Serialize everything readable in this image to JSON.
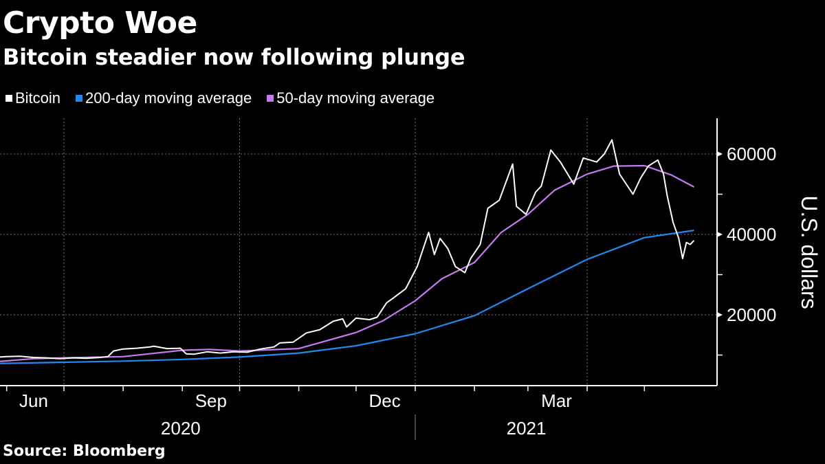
{
  "header": {
    "title": "Crypto Woe",
    "subtitle": "Bitcoin steadier now following plunge"
  },
  "legend": [
    {
      "label": "Bitcoin",
      "color": "#ffffff"
    },
    {
      "label": "200-day moving average",
      "color": "#1f8bf2"
    },
    {
      "label": "50-day moving average",
      "color": "#c77af0"
    }
  ],
  "footer": {
    "source": "Source: Bloomberg"
  },
  "chart_data": {
    "type": "line",
    "title": "Crypto Woe",
    "subtitle": "Bitcoin steadier now following plunge",
    "xlabel": "",
    "ylabel": "U.S. dollars",
    "ylim": [
      2600,
      68900
    ],
    "xlim": [
      "2020-05-28",
      "2021-05-20"
    ],
    "grid": true,
    "legend_position": "top-left",
    "y_ticks": [
      20000,
      40000,
      60000
    ],
    "y_tick_labels": [
      "20000",
      "40000",
      "60000"
    ],
    "y_minor_ticks": [
      10000,
      30000,
      50000
    ],
    "x_ticks": [
      "2020-06-01",
      "2020-07-01",
      "2020-08-01",
      "2020-09-01",
      "2020-10-01",
      "2020-11-01",
      "2020-12-01",
      "2021-01-01",
      "2021-02-01",
      "2021-03-01",
      "2021-04-01",
      "2021-05-01"
    ],
    "x_month_labels": [
      {
        "label": "Jun",
        "date": "2020-06-16"
      },
      {
        "label": "Sep",
        "date": "2020-09-16"
      },
      {
        "label": "Dec",
        "date": "2020-12-16"
      },
      {
        "label": "Mar",
        "date": "2021-03-16"
      }
    ],
    "x_year_labels": [
      {
        "label": "2020",
        "date": "2020-09-16"
      },
      {
        "label": "2021",
        "date": "2021-03-16"
      }
    ],
    "year_divider": "2021-01-01",
    "series": [
      {
        "name": "Bitcoin",
        "color": "#ffffff",
        "x": [
          "2020-05-28",
          "2020-06-01",
          "2020-06-08",
          "2020-06-15",
          "2020-06-22",
          "2020-06-29",
          "2020-07-06",
          "2020-07-13",
          "2020-07-20",
          "2020-07-24",
          "2020-07-27",
          "2020-08-01",
          "2020-08-08",
          "2020-08-15",
          "2020-08-17",
          "2020-08-24",
          "2020-08-31",
          "2020-09-03",
          "2020-09-07",
          "2020-09-14",
          "2020-09-21",
          "2020-09-28",
          "2020-10-05",
          "2020-10-12",
          "2020-10-19",
          "2020-10-22",
          "2020-10-29",
          "2020-11-05",
          "2020-11-12",
          "2020-11-19",
          "2020-11-24",
          "2020-11-26",
          "2020-12-01",
          "2020-12-08",
          "2020-12-12",
          "2020-12-17",
          "2020-12-20",
          "2020-12-27",
          "2021-01-02",
          "2021-01-08",
          "2021-01-11",
          "2021-01-14",
          "2021-01-18",
          "2021-01-22",
          "2021-01-27",
          "2021-01-30",
          "2021-02-04",
          "2021-02-08",
          "2021-02-14",
          "2021-02-21",
          "2021-02-23",
          "2021-02-28",
          "2021-03-05",
          "2021-03-08",
          "2021-03-13",
          "2021-03-18",
          "2021-03-25",
          "2021-03-30",
          "2021-04-06",
          "2021-04-10",
          "2021-04-14",
          "2021-04-18",
          "2021-04-25",
          "2021-04-29",
          "2021-05-03",
          "2021-05-08",
          "2021-05-11",
          "2021-05-13",
          "2021-05-16",
          "2021-05-19",
          "2021-05-21",
          "2021-05-23",
          "2021-05-25",
          "2021-05-27"
        ],
        "values": [
          9500,
          9600,
          9700,
          9400,
          9300,
          9100,
          9300,
          9200,
          9400,
          9600,
          11000,
          11500,
          11700,
          12000,
          12200,
          11600,
          11700,
          10300,
          10200,
          10800,
          10500,
          10800,
          10700,
          11500,
          12000,
          13000,
          13200,
          15500,
          16300,
          18400,
          19000,
          17000,
          19200,
          18800,
          19400,
          23000,
          24000,
          26500,
          32000,
          40500,
          35000,
          39000,
          36500,
          32000,
          30500,
          34000,
          37500,
          46500,
          48500,
          57500,
          47000,
          45000,
          50500,
          52000,
          61000,
          58000,
          52500,
          59000,
          58000,
          60000,
          63500,
          55000,
          50000,
          54000,
          57000,
          58500,
          55000,
          49500,
          43000,
          39000,
          34000,
          38000,
          37500,
          38500
        ]
      },
      {
        "name": "200-day moving average",
        "color": "#1f8bf2",
        "x": [
          "2020-05-28",
          "2020-07-01",
          "2020-08-01",
          "2020-09-01",
          "2020-10-01",
          "2020-11-01",
          "2020-12-01",
          "2021-01-01",
          "2021-02-01",
          "2021-03-01",
          "2021-04-01",
          "2021-05-01",
          "2021-05-27"
        ],
        "values": [
          7900,
          8200,
          8500,
          8900,
          9500,
          10500,
          12300,
          15300,
          19800,
          26500,
          33800,
          39200,
          41000
        ]
      },
      {
        "name": "50-day moving average",
        "color": "#c77af0",
        "x": [
          "2020-05-28",
          "2020-06-15",
          "2020-07-01",
          "2020-08-01",
          "2020-09-01",
          "2020-09-15",
          "2020-10-01",
          "2020-11-01",
          "2020-12-01",
          "2020-12-15",
          "2021-01-01",
          "2021-01-15",
          "2021-02-01",
          "2021-02-15",
          "2021-03-01",
          "2021-03-15",
          "2021-04-01",
          "2021-04-15",
          "2021-05-01",
          "2021-05-15",
          "2021-05-27"
        ],
        "values": [
          8400,
          9100,
          9300,
          9600,
          11200,
          11400,
          11000,
          11600,
          15600,
          18500,
          23500,
          29000,
          33000,
          40500,
          45000,
          51000,
          55000,
          57000,
          57100,
          54800,
          51800
        ]
      }
    ]
  }
}
